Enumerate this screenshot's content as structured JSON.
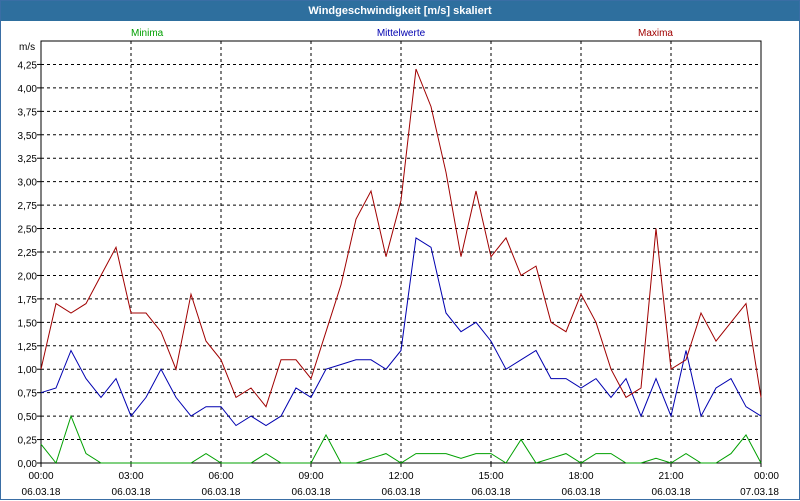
{
  "window": {
    "title": "Windgeschwindigkeit [m/s] skaliert"
  },
  "colors": {
    "min": "#00a000",
    "mean": "#0000b0",
    "max": "#a00000",
    "grid": "#000000",
    "titlebar": "#2e6f9e"
  },
  "chart_data": {
    "type": "line",
    "title": "Windgeschwindigkeit [m/s] skaliert",
    "ylabel": "m/s",
    "xlabel": "",
    "ylim": [
      0,
      4.5
    ],
    "y_ticks": [
      "0,00",
      "0,25",
      "0,50",
      "0,75",
      "1,00",
      "1,25",
      "1,50",
      "1,75",
      "2,00",
      "2,25",
      "2,50",
      "2,75",
      "3,00",
      "3,25",
      "3,50",
      "3,75",
      "4,00",
      "4,25"
    ],
    "x_ticks": [
      {
        "time": "00:00",
        "date": "06.03.18"
      },
      {
        "time": "03:00",
        "date": "06.03.18"
      },
      {
        "time": "06:00",
        "date": "06.03.18"
      },
      {
        "time": "09:00",
        "date": "06.03.18"
      },
      {
        "time": "12:00",
        "date": "06.03.18"
      },
      {
        "time": "15:00",
        "date": "06.03.18"
      },
      {
        "time": "18:00",
        "date": "06.03.18"
      },
      {
        "time": "21:00",
        "date": "06.03.18"
      },
      {
        "time": "00:00",
        "date": "07.03.18"
      }
    ],
    "x_hours": [
      0,
      0.5,
      1,
      1.5,
      2,
      2.5,
      3,
      3.5,
      4,
      4.5,
      5,
      5.5,
      6,
      6.5,
      7,
      7.5,
      8,
      8.5,
      9,
      9.5,
      10,
      10.5,
      11,
      11.5,
      12,
      12.5,
      13,
      13.5,
      14,
      14.5,
      15,
      15.5,
      16,
      16.5,
      17,
      17.5,
      18,
      18.5,
      19,
      19.5,
      20,
      20.5,
      21,
      21.5,
      22,
      22.5,
      23,
      23.5,
      24
    ],
    "series": [
      {
        "name": "Minima",
        "values": [
          0.2,
          0.0,
          0.5,
          0.1,
          0.0,
          0.0,
          0.0,
          0.0,
          0.0,
          0.0,
          0.0,
          0.1,
          0.0,
          0.0,
          0.0,
          0.1,
          0.0,
          0.0,
          0.0,
          0.3,
          0.0,
          0.0,
          0.05,
          0.1,
          0.0,
          0.1,
          0.1,
          0.1,
          0.05,
          0.1,
          0.1,
          0.0,
          0.25,
          0.0,
          0.05,
          0.1,
          0.0,
          0.1,
          0.1,
          0.0,
          0.0,
          0.05,
          0.0,
          0.1,
          0.0,
          0.0,
          0.1,
          0.3,
          0.0
        ]
      },
      {
        "name": "Mittelwerte",
        "values": [
          0.75,
          0.8,
          1.2,
          0.9,
          0.7,
          0.9,
          0.5,
          0.7,
          1.0,
          0.7,
          0.5,
          0.6,
          0.6,
          0.4,
          0.5,
          0.4,
          0.5,
          0.8,
          0.7,
          1.0,
          1.05,
          1.1,
          1.1,
          1.0,
          1.2,
          2.4,
          2.3,
          1.6,
          1.4,
          1.5,
          1.3,
          1.0,
          1.1,
          1.2,
          0.9,
          0.9,
          0.8,
          0.9,
          0.7,
          0.9,
          0.5,
          0.9,
          0.5,
          1.2,
          0.5,
          0.8,
          0.9,
          0.6,
          0.5
        ]
      },
      {
        "name": "Maxima",
        "values": [
          1.0,
          1.7,
          1.6,
          1.7,
          2.0,
          2.3,
          1.6,
          1.6,
          1.4,
          1.0,
          1.8,
          1.3,
          1.1,
          0.7,
          0.8,
          0.6,
          1.1,
          1.1,
          0.9,
          1.4,
          1.9,
          2.6,
          2.9,
          2.2,
          2.8,
          4.2,
          3.8,
          3.1,
          2.2,
          2.9,
          2.2,
          2.4,
          2.0,
          2.1,
          1.5,
          1.4,
          1.8,
          1.5,
          1.0,
          0.7,
          0.8,
          2.5,
          1.0,
          1.1,
          1.6,
          1.3,
          1.5,
          1.7,
          0.7
        ]
      }
    ],
    "legend": "top"
  }
}
